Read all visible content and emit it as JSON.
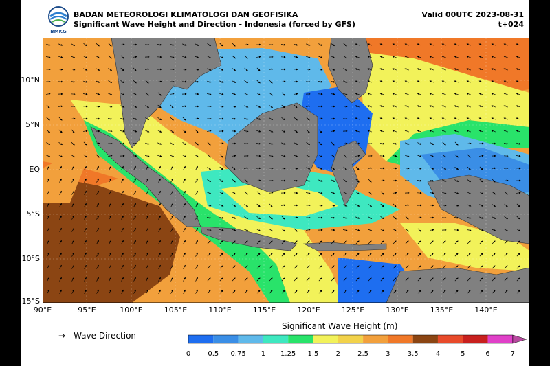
{
  "header": {
    "logo_text": "BMKG",
    "agency": "BADAN METEOROLOGI KLIMATOLOGI DAN GEOFISIKA",
    "product": "Significant Wave Height and Direction - Indonesia (forced by GFS)",
    "valid": "Valid 00UTC 2023-08-31",
    "forecast_step": "t+024"
  },
  "map": {
    "lat_labels": [
      "10°N",
      "5°N",
      "EQ",
      "5°S",
      "10°S",
      "15°S"
    ],
    "lon_labels": [
      "90°E",
      "95°E",
      "100°E",
      "105°E",
      "110°E",
      "115°E",
      "120°E",
      "125°E",
      "130°E",
      "135°E",
      "140°E"
    ],
    "land_color": "#808080"
  },
  "legend": {
    "direction_label": "Wave Direction",
    "direction_icon": "arrow-right-icon",
    "colorbar_title": "Significant Wave Height (m)",
    "ticks": [
      "0",
      "0.5",
      "0.75",
      "1",
      "1.25",
      "1.5",
      "2",
      "2.5",
      "3",
      "3.5",
      "4",
      "5",
      "6",
      "7"
    ],
    "colors": [
      "#1e6ef0",
      "#3a8ee6",
      "#5fb9ea",
      "#3ee8c0",
      "#29e36a",
      "#f2f25a",
      "#f2d24a",
      "#f2a03c",
      "#f07828",
      "#8b4513",
      "#e84a2a",
      "#c8201e",
      "#e040c8",
      "#b84aa0"
    ]
  }
}
